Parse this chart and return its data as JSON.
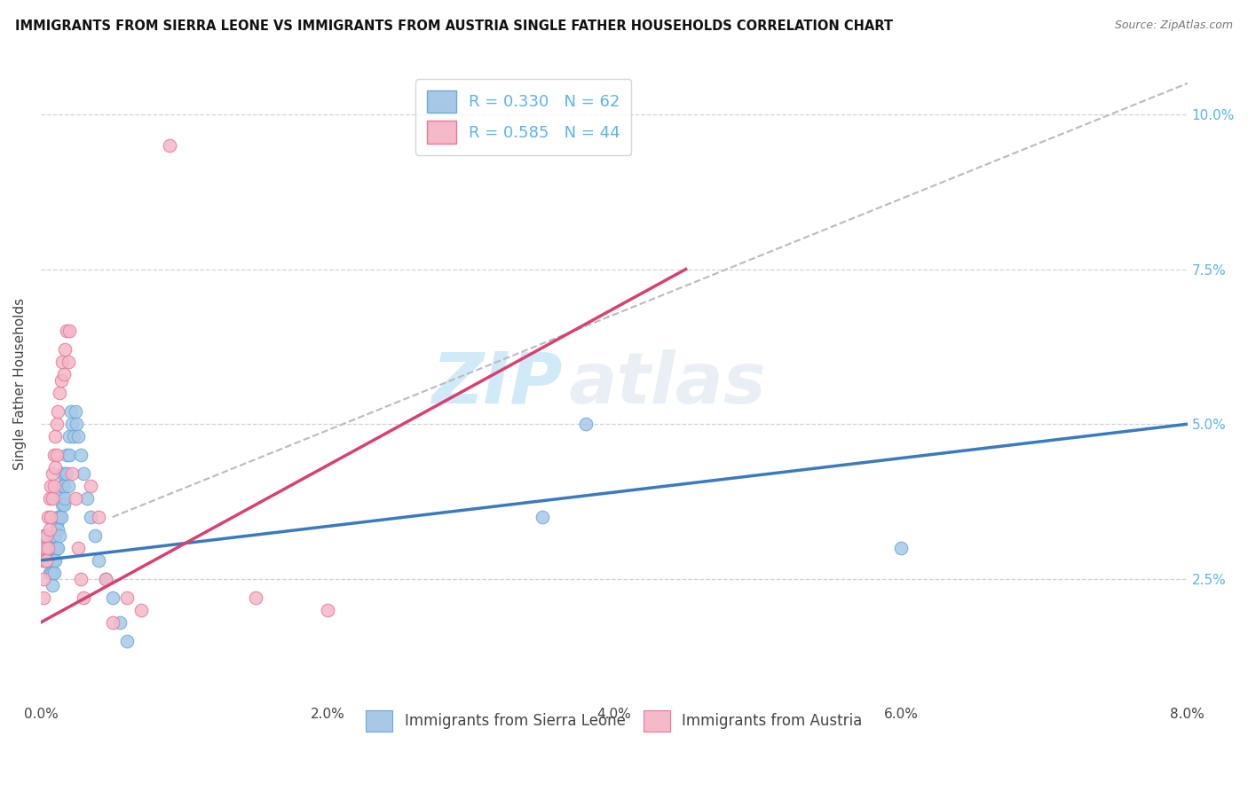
{
  "title": "IMMIGRANTS FROM SIERRA LEONE VS IMMIGRANTS FROM AUSTRIA SINGLE FATHER HOUSEHOLDS CORRELATION CHART",
  "source": "Source: ZipAtlas.com",
  "ylabel": "Single Father Households",
  "legend_bottom": [
    "Immigrants from Sierra Leone",
    "Immigrants from Austria"
  ],
  "series": [
    {
      "name": "Immigrants from Sierra Leone",
      "color": "#a8c8e8",
      "border_color": "#6aaad4",
      "R": 0.33,
      "N": 62,
      "line_color": "#3a7abf",
      "x": [
        0.0002,
        0.0003,
        0.0004,
        0.0004,
        0.0005,
        0.0005,
        0.0005,
        0.0006,
        0.0006,
        0.0006,
        0.0007,
        0.0007,
        0.0007,
        0.0008,
        0.0008,
        0.0008,
        0.0008,
        0.0009,
        0.0009,
        0.001,
        0.001,
        0.001,
        0.0011,
        0.0011,
        0.0012,
        0.0012,
        0.0012,
        0.0013,
        0.0013,
        0.0014,
        0.0014,
        0.0015,
        0.0015,
        0.0015,
        0.0016,
        0.0016,
        0.0017,
        0.0017,
        0.0018,
        0.0018,
        0.0019,
        0.002,
        0.002,
        0.0021,
        0.0022,
        0.0023,
        0.0024,
        0.0025,
        0.0026,
        0.0028,
        0.003,
        0.0032,
        0.0035,
        0.0038,
        0.004,
        0.0045,
        0.005,
        0.0055,
        0.006,
        0.035,
        0.038,
        0.06
      ],
      "y": [
        0.032,
        0.03,
        0.028,
        0.03,
        0.03,
        0.03,
        0.028,
        0.03,
        0.028,
        0.026,
        0.03,
        0.028,
        0.026,
        0.03,
        0.028,
        0.026,
        0.024,
        0.028,
        0.026,
        0.032,
        0.03,
        0.028,
        0.034,
        0.03,
        0.035,
        0.033,
        0.03,
        0.035,
        0.032,
        0.038,
        0.035,
        0.042,
        0.04,
        0.037,
        0.04,
        0.037,
        0.042,
        0.038,
        0.045,
        0.042,
        0.04,
        0.048,
        0.045,
        0.052,
        0.05,
        0.048,
        0.052,
        0.05,
        0.048,
        0.045,
        0.042,
        0.038,
        0.035,
        0.032,
        0.028,
        0.025,
        0.022,
        0.018,
        0.015,
        0.035,
        0.05,
        0.03
      ]
    },
    {
      "name": "Immigrants from Austria",
      "color": "#f4b8c8",
      "border_color": "#e8789a",
      "R": 0.585,
      "N": 44,
      "line_color": "#d94070",
      "x": [
        0.0001,
        0.0002,
        0.0002,
        0.0003,
        0.0003,
        0.0004,
        0.0004,
        0.0005,
        0.0005,
        0.0006,
        0.0006,
        0.0007,
        0.0007,
        0.0008,
        0.0008,
        0.0009,
        0.0009,
        0.001,
        0.001,
        0.0011,
        0.0011,
        0.0012,
        0.0013,
        0.0014,
        0.0015,
        0.0016,
        0.0017,
        0.0018,
        0.0019,
        0.002,
        0.0022,
        0.0024,
        0.0026,
        0.0028,
        0.003,
        0.0035,
        0.004,
        0.0045,
        0.005,
        0.006,
        0.007,
        0.009,
        0.015,
        0.02
      ],
      "y": [
        0.028,
        0.025,
        0.022,
        0.03,
        0.028,
        0.032,
        0.028,
        0.035,
        0.03,
        0.038,
        0.033,
        0.04,
        0.035,
        0.042,
        0.038,
        0.045,
        0.04,
        0.048,
        0.043,
        0.05,
        0.045,
        0.052,
        0.055,
        0.057,
        0.06,
        0.058,
        0.062,
        0.065,
        0.06,
        0.065,
        0.042,
        0.038,
        0.03,
        0.025,
        0.022,
        0.04,
        0.035,
        0.025,
        0.018,
        0.022,
        0.02,
        0.095,
        0.022,
        0.02
      ]
    }
  ],
  "xlim": [
    0.0,
    0.08
  ],
  "ylim": [
    0.005,
    0.108
  ],
  "xticks": [
    0.0,
    0.02,
    0.04,
    0.06,
    0.08
  ],
  "xtick_labels": [
    "0.0%",
    "2.0%",
    "4.0%",
    "6.0%",
    "8.0%"
  ],
  "yticks": [
    0.025,
    0.05,
    0.075,
    0.1
  ],
  "ytick_labels": [
    "2.5%",
    "5.0%",
    "7.5%",
    "10.0%"
  ],
  "grid_color": "#cccccc",
  "background_color": "#ffffff",
  "watermark_zip": "ZIP",
  "watermark_atlas": "atlas",
  "dashed_line_x": [
    0.005,
    0.08
  ],
  "dashed_line_y": [
    0.035,
    0.105
  ],
  "dashed_line_color": "#bbbbbb",
  "blue_line_x": [
    0.0,
    0.08
  ],
  "blue_line_y": [
    0.028,
    0.05
  ],
  "pink_line_x": [
    0.0,
    0.045
  ],
  "pink_line_y": [
    0.018,
    0.075
  ]
}
